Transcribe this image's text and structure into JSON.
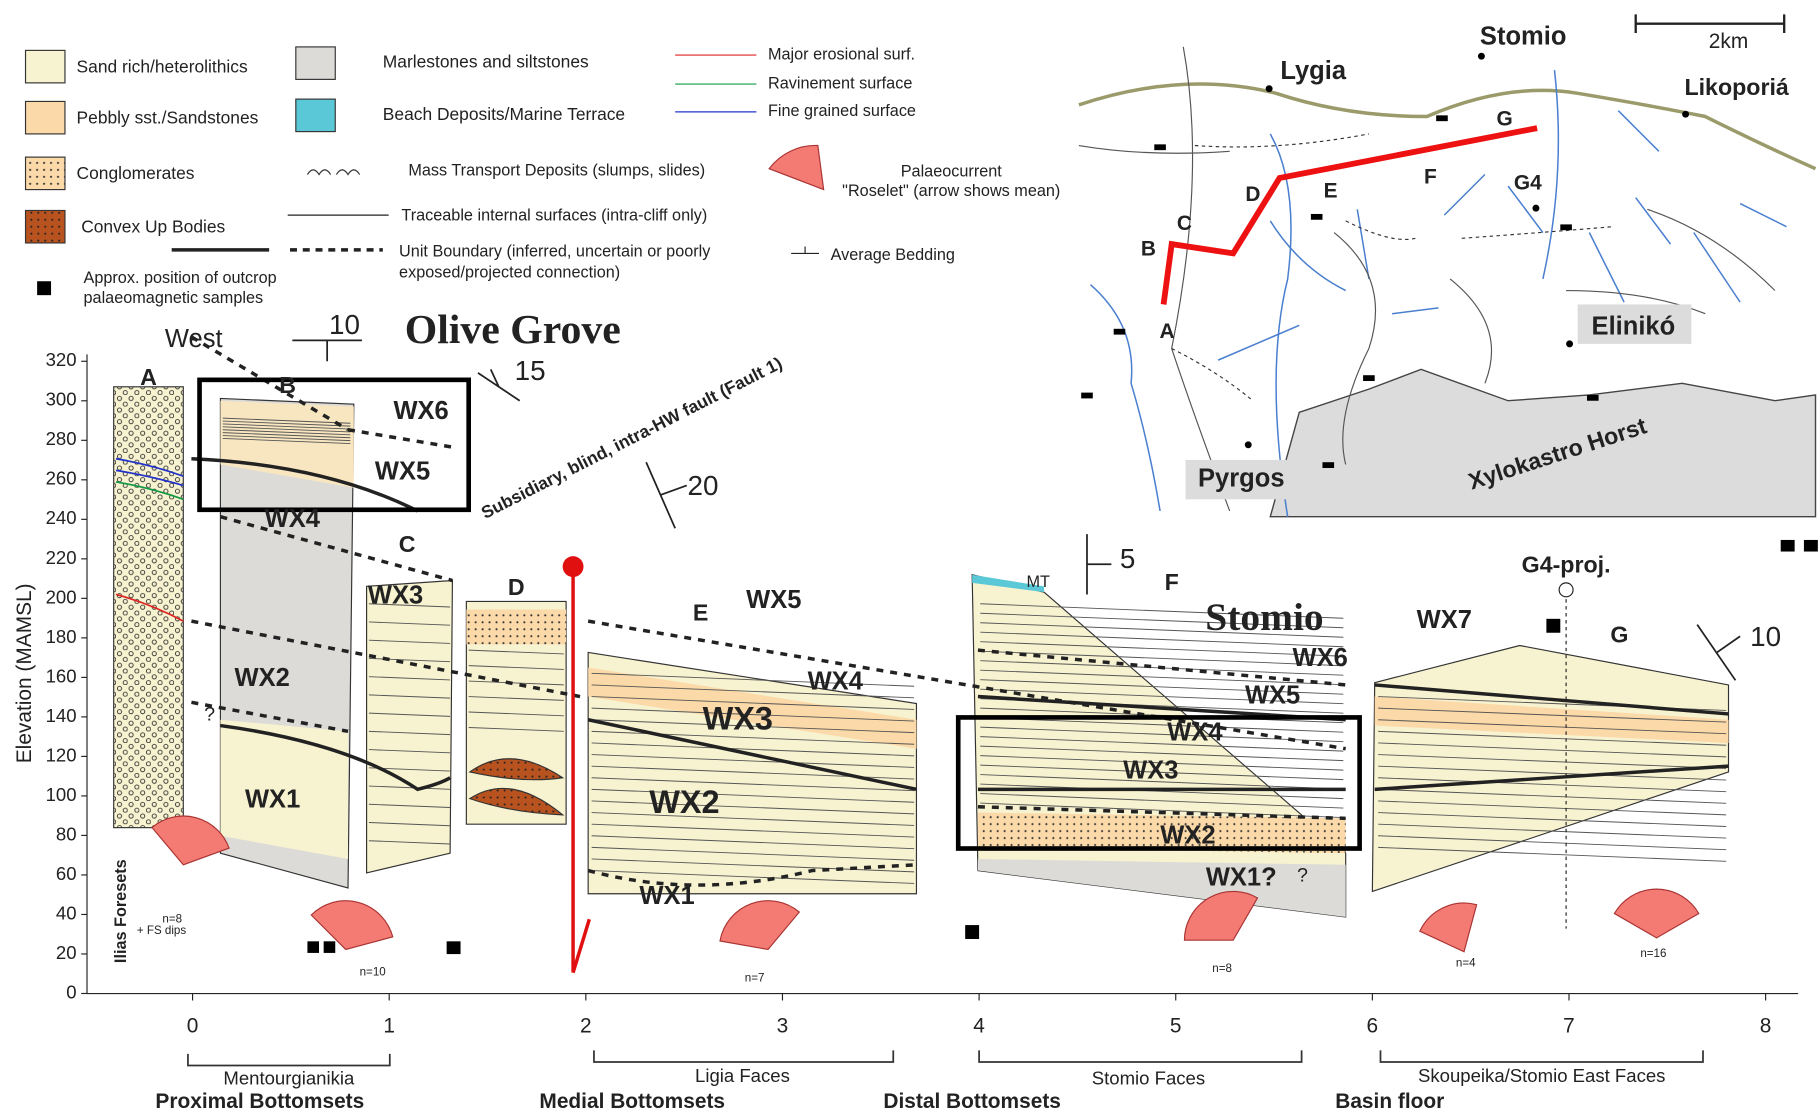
{
  "legend": {
    "sand": "Sand rich/heterolithics",
    "pebbly": "Pebbly sst./Sandstones",
    "conglomerates": "Conglomerates",
    "convex": "Convex Up Bodies",
    "samples": [
      "Approx. position of outcrop",
      "palaeomagnetic samples"
    ],
    "marl": "Marlestones and siltstones",
    "beach": "Beach Deposits/Marine Terrace",
    "mtd": "Mass Transport Deposits (slumps, slides)",
    "traceable": "Traceable internal surfaces (intra-cliff only)",
    "unit_boundary": [
      "Unit Boundary (inferred, uncertain or poorly",
      "exposed/projected connection)"
    ],
    "erosional": "Major erosional surf.",
    "ravinement": "Ravinement surface",
    "fine": "Fine grained surface",
    "palaeocurrent": [
      "Palaeocurrent",
      "\"Roselet\" (arrow shows mean)"
    ],
    "bedding": "Average Bedding"
  },
  "map": {
    "scale": "2km",
    "places": [
      "Lygia",
      "Stomio",
      "Likoporiá",
      "Elinikó",
      "Pyrgos",
      "Xylokastro Horst"
    ],
    "sites": [
      "A",
      "B",
      "C",
      "D",
      "E",
      "F",
      "G",
      "G4"
    ]
  },
  "section": {
    "title": "Olive Grove",
    "subtitle": "Stomio",
    "west": "West",
    "y_label": "Elevation (MAMSL)",
    "y_ticks": [
      320,
      300,
      280,
      260,
      240,
      220,
      200,
      180,
      160,
      140,
      120,
      100,
      80,
      60,
      40,
      20,
      0
    ],
    "x_ticks": [
      0,
      1,
      2,
      3,
      4,
      5,
      6,
      7,
      8
    ],
    "dips": [
      10,
      15,
      20,
      5,
      10
    ],
    "logs": [
      "A",
      "B",
      "C",
      "D",
      "E",
      "F",
      "G"
    ],
    "units": [
      "WX6",
      "WX5",
      "WX4",
      "WX3",
      "WX2",
      "WX1",
      "WX5",
      "WX4",
      "WX3",
      "WX2",
      "WX1",
      "WX7",
      "WX6",
      "WX5",
      "WX4",
      "WX3",
      "WX2",
      "WX1?"
    ],
    "fault": "Subsidiary, blind, intra-HW fault (Fault 1)",
    "mt": "MT",
    "g4proj": "G4-proj.",
    "ilias": "Ilias Foresets",
    "questions": [
      "?",
      "?"
    ],
    "roselets": [
      "n=8",
      "n=10",
      "n=7",
      "n=8",
      "n=4",
      "n=16"
    ],
    "fs_dips": "+ FS dips",
    "faces": [
      "Mentourgianikia",
      "Ligia Faces",
      "Stomio Faces",
      "Skoupeika/Stomio East Faces"
    ],
    "zones": [
      "Proximal Bottomsets",
      "Medial Bottomsets",
      "Distal Bottomsets",
      "Basin floor"
    ]
  }
}
